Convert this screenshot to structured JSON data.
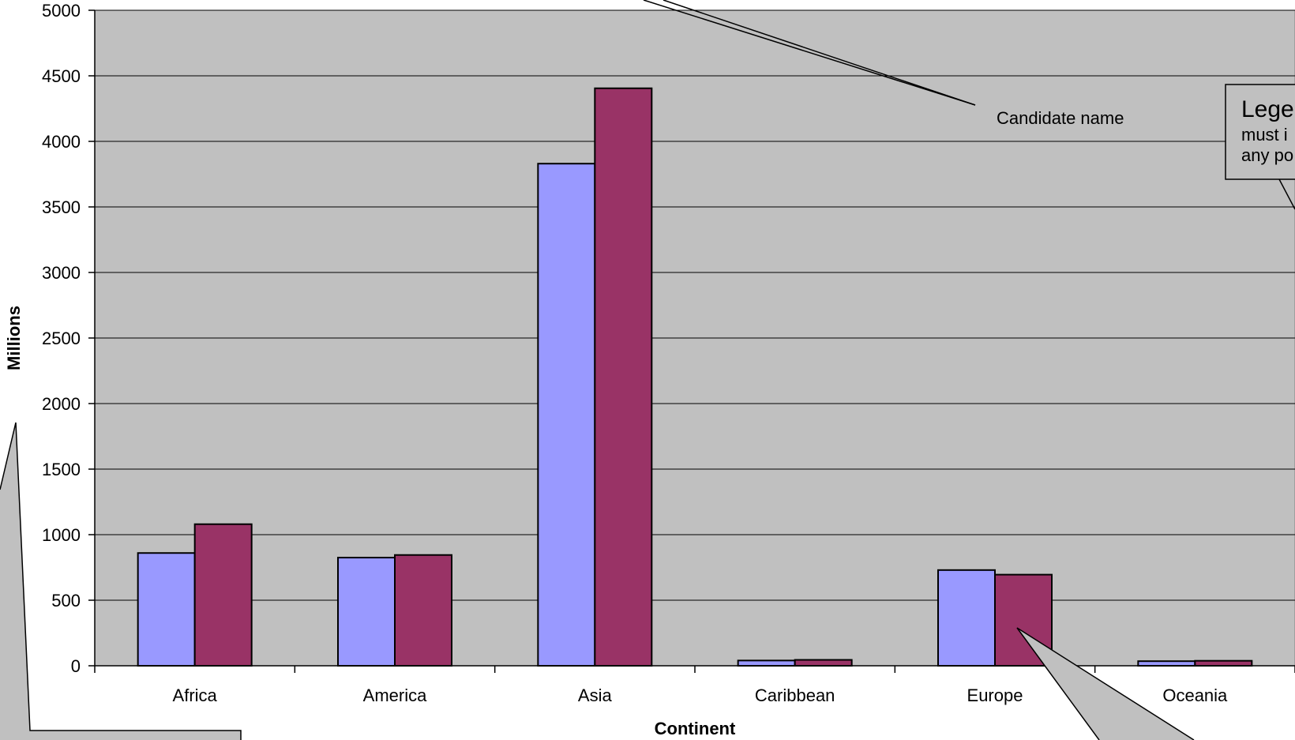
{
  "chart_data": {
    "type": "bar",
    "categories": [
      "Africa",
      "America",
      "Asia",
      "Caribbean",
      "Europe",
      "Oceania"
    ],
    "series": [
      {
        "values": [
          860,
          825,
          3830,
          40,
          730,
          35
        ]
      },
      {
        "values": [
          1080,
          845,
          4405,
          45,
          695,
          38
        ]
      }
    ],
    "xlabel": "Continent",
    "ylabel": "Millions",
    "ylim": [
      0,
      5000
    ],
    "yticks": [
      0,
      500,
      1000,
      1500,
      2000,
      2500,
      3000,
      3500,
      4000,
      4500,
      5000
    ],
    "grid": true,
    "annotations": {
      "candidate": "Candidate name",
      "legend_title": "Lege",
      "legend_line1": "must i",
      "legend_line2": "any po"
    }
  },
  "colors": {
    "plot_background": "#c0c0c0",
    "series1": "#9999ff",
    "series2": "#993366",
    "callout_fill": "#c0c0c0"
  }
}
